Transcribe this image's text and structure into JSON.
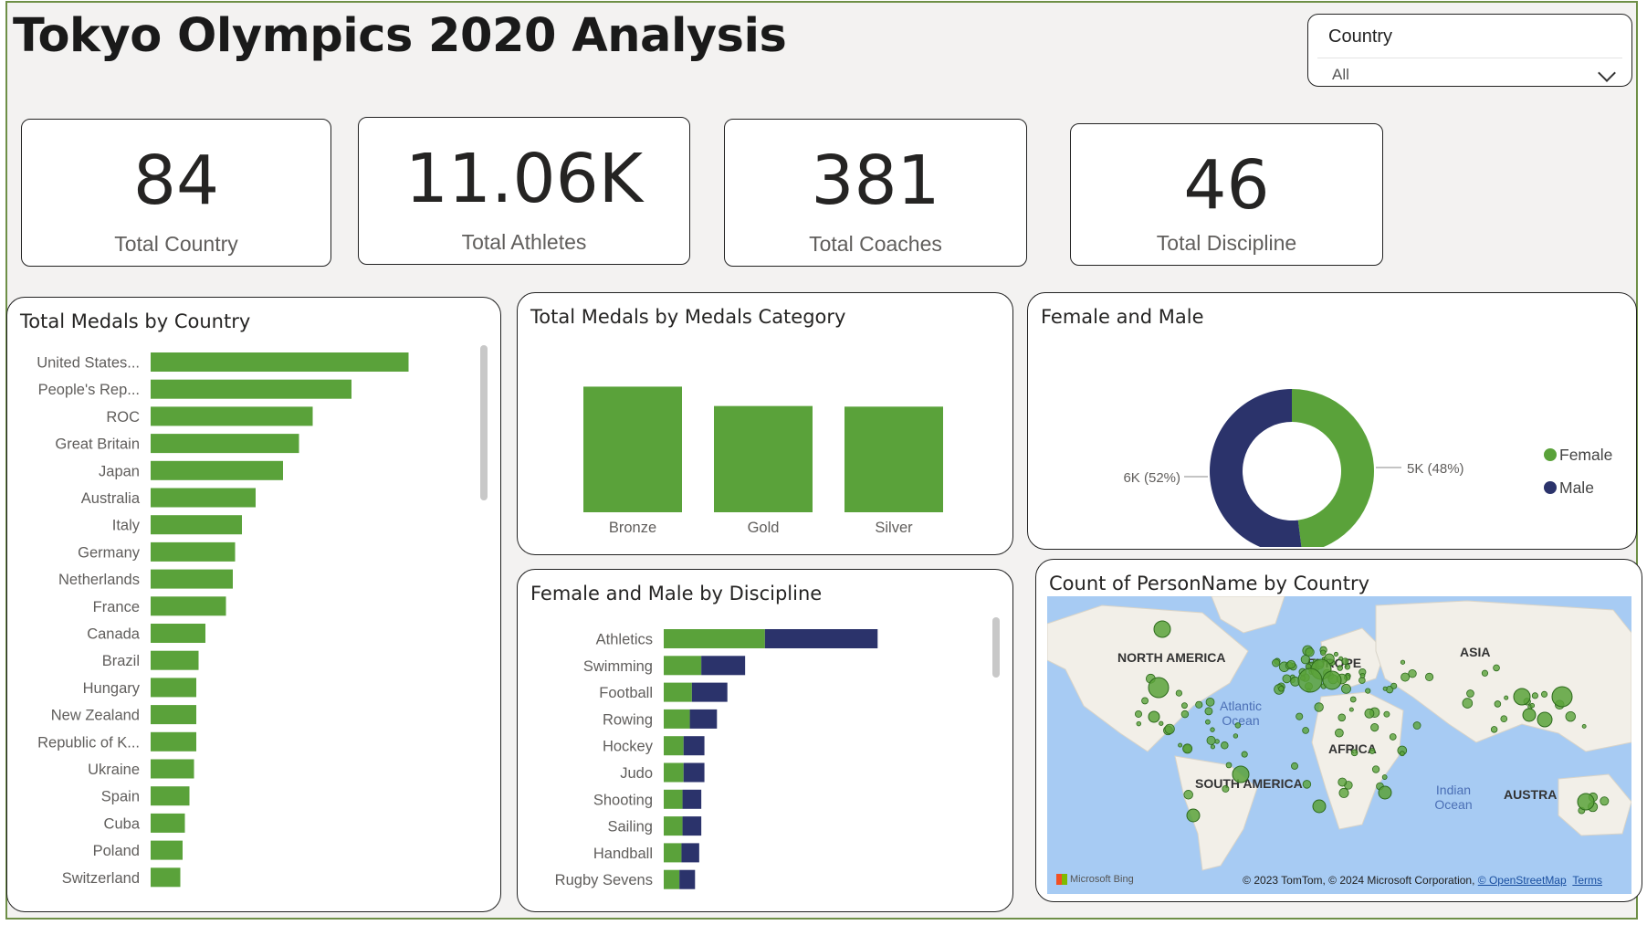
{
  "title": "Tokyo Olympics 2020 Analysis",
  "slicer": {
    "label": "Country",
    "value": "All"
  },
  "kpis": [
    {
      "value": "84",
      "label": "Total Country"
    },
    {
      "value": "11.06K",
      "label": "Total Athletes"
    },
    {
      "value": "381",
      "label": "Total Coaches"
    },
    {
      "value": "46",
      "label": "Total Discipline"
    }
  ],
  "colors": {
    "green": "#5aa23a",
    "navy": "#2b336b",
    "map_water": "#a7cbf3",
    "map_land": "#f2efe8"
  },
  "chart_data": [
    {
      "type": "bar",
      "orientation": "horizontal",
      "title": "Total Medals by Country",
      "categories": [
        "United States...",
        "People's Rep...",
        "ROC",
        "Great Britain",
        "Japan",
        "Australia",
        "Italy",
        "Germany",
        "Netherlands",
        "France",
        "Canada",
        "Brazil",
        "Hungary",
        "New Zealand",
        "Republic of K...",
        "Ukraine",
        "Spain",
        "Cuba",
        "Poland",
        "Switzerland"
      ],
      "values": [
        113,
        88,
        71,
        65,
        58,
        46,
        40,
        37,
        36,
        33,
        24,
        21,
        20,
        20,
        20,
        19,
        17,
        15,
        14,
        13
      ],
      "xlim": [
        0,
        120
      ]
    },
    {
      "type": "bar",
      "title": "Total Medals by Medals Category",
      "categories": [
        "Bronze",
        "Gold",
        "Silver"
      ],
      "values": [
        402,
        340,
        338
      ],
      "ylim": [
        0,
        450
      ]
    },
    {
      "type": "pie",
      "title": "Female and Male",
      "legend_position": "right",
      "slices": [
        {
          "name": "Female",
          "value": 5,
          "percent": 48,
          "label": "5K (48%)"
        },
        {
          "name": "Male",
          "value": 6,
          "percent": 52,
          "label": "6K (52%)"
        }
      ]
    },
    {
      "type": "bar",
      "orientation": "horizontal",
      "stacked": true,
      "title": "Female and Male by Discipline",
      "categories": [
        "Athletics",
        "Swimming",
        "Football",
        "Rowing",
        "Hockey",
        "Judo",
        "Shooting",
        "Sailing",
        "Handball",
        "Rugby Sevens"
      ],
      "series": [
        {
          "name": "Female",
          "values": [
            970,
            360,
            270,
            250,
            190,
            190,
            180,
            180,
            170,
            150
          ]
        },
        {
          "name": "Male",
          "values": [
            1080,
            420,
            340,
            260,
            200,
            200,
            180,
            180,
            170,
            150
          ]
        }
      ],
      "xlim": [
        0,
        2100
      ]
    },
    {
      "type": "map",
      "title": "Count of PersonName by Country",
      "region_labels": [
        "NORTH AMERICA",
        "EUROPE",
        "ASIA",
        "AFRICA",
        "SOUTH AMERICA",
        "AUSTRA",
        "Atlantic Ocean",
        "Indian Ocean"
      ],
      "attribution_logo": "Microsoft Bing",
      "attribution": "© 2023 TomTom, © 2024 Microsoft Corporation,",
      "attribution_link": "© OpenStreetMap",
      "terms": "Terms"
    }
  ]
}
